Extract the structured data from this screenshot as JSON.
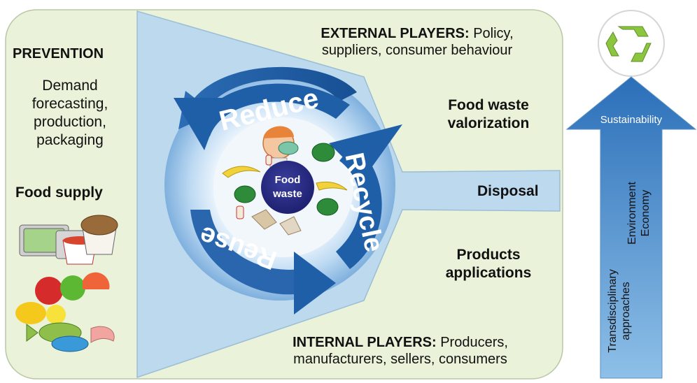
{
  "left_panel": {
    "prevention": "PREVENTION",
    "prevention_items": [
      "Demand",
      "forecasting,",
      "production,",
      "packaging"
    ],
    "food_supply": "Food supply"
  },
  "top_text": {
    "external_label": "EXTERNAL PLAYERS:",
    "external_rest_1": " Policy,",
    "external_rest_2": "suppliers, consumer behaviour"
  },
  "right_text": {
    "valorization": [
      "Food waste",
      "valorization"
    ],
    "disposal": "Disposal",
    "products": [
      "Products",
      "applications"
    ]
  },
  "bottom_text": {
    "internal_label": "INTERNAL PLAYERS:",
    "internal_rest_1": " Producers,",
    "internal_rest_2": "manufacturers, sellers, consumers"
  },
  "cycle": {
    "reduce": "Reduce",
    "recycle": "Recycle",
    "reuse": "Reuse",
    "center": [
      "Food",
      "waste"
    ]
  },
  "sustainability": {
    "arrow_label": "Sustainability",
    "column_1": [
      "Environment",
      "Economy"
    ],
    "column_2": [
      "Transdisciplinary",
      "approaches"
    ]
  },
  "icons": [
    "recycle-icon",
    "food-containers-icon",
    "fruit-icon",
    "fish-icon",
    "cartoon-figure-icon",
    "leaf-icon",
    "banana-icon",
    "apple-core-icon"
  ],
  "colors": {
    "panel_bg": "#eaf3d9",
    "funnel": "#bcd9ee",
    "arrow_dark": "#1f5fa8",
    "arrow_light": "#9ec7ea",
    "center_circle": "#2a2c8a",
    "recycle_green": "#8cc63f"
  }
}
